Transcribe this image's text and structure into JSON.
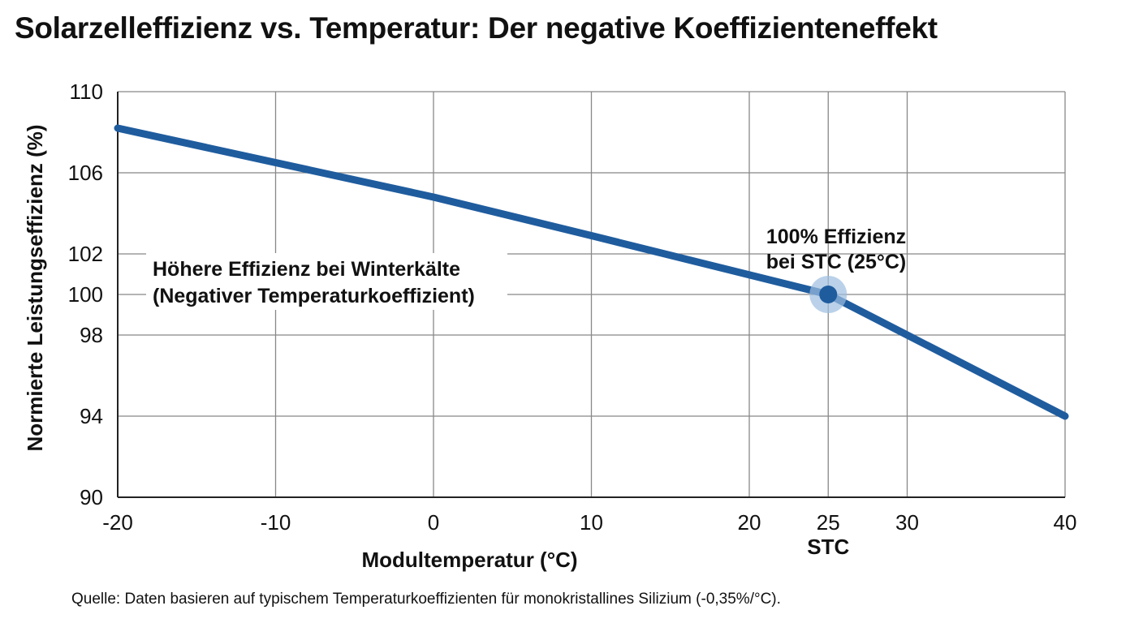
{
  "chart_data": {
    "type": "line",
    "title": "Solarzelleffizienz vs. Temperatur: Der negative Koeffizienteneffekt",
    "xlabel": "Modultemperatur (°C)",
    "ylabel": "Normierte Leistungseffizienz (%)",
    "xlim": [
      -20,
      40
    ],
    "ylim": [
      90,
      110
    ],
    "xticks": [
      -20,
      -10,
      0,
      10,
      20,
      25,
      30,
      40
    ],
    "xtick_labels": [
      "-20",
      "-10",
      "0",
      "10",
      "20",
      "25",
      "30",
      "40"
    ],
    "xtick_sublabel": {
      "x": 25,
      "text": "STC"
    },
    "yticks": [
      90,
      94,
      98,
      100,
      102,
      106,
      110
    ],
    "ytick_labels": [
      "90",
      "94",
      "98",
      "100",
      "102",
      "106",
      "110"
    ],
    "grid": true,
    "series": [
      {
        "x": [
          -20,
          0,
          10,
          25,
          30,
          40
        ],
        "y": [
          108.2,
          104.8,
          102.9,
          100,
          98,
          94
        ],
        "color": "#1f5c9e"
      }
    ],
    "highlight_point": {
      "x": 25,
      "y": 100,
      "label_lines": [
        "100% Effizienz",
        "bei STC (25°C)"
      ]
    },
    "annotation": {
      "lines": [
        "Höhere Effizienz bei Winterkälte",
        "(Negativer Temperaturkoeffizient)"
      ]
    },
    "source": "Quelle: Daten basieren auf typischem Temperaturkoeffizienten für monokristallines Silizium (-0,35%/°C)."
  }
}
